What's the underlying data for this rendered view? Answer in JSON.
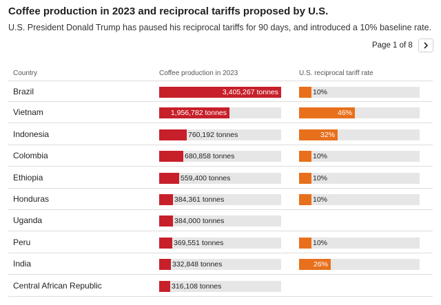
{
  "title": "Coffee production in 2023 and reciprocal tariffs proposed by U.S.",
  "subtitle": "U.S. President Donald Trump has paused his reciprocal tariffs for 90 days, and introduced a 10% baseline rate.",
  "pager": {
    "text": "Page 1 of 8",
    "next_icon": "chevron-right-icon"
  },
  "headers": {
    "country": "Country",
    "production": "Coffee production in 2023",
    "tariff": "U.S. reciprocal tariff rate"
  },
  "colors": {
    "production_bar": "#c7202a",
    "tariff_bar": "#e8701c",
    "track": "#e6e6e6"
  },
  "chart_data": {
    "type": "table",
    "title": "Coffee production in 2023 and reciprocal tariffs proposed by U.S.",
    "columns": [
      "Country",
      "Coffee production in 2023",
      "U.S. reciprocal tariff rate"
    ],
    "production_max": 3405267,
    "tariff_max": 100,
    "rows": [
      {
        "country": "Brazil",
        "production": 3405267,
        "production_label": "3,405,267 tonnes",
        "tariff": 10,
        "tariff_label": "10%"
      },
      {
        "country": "Vietnam",
        "production": 1956782,
        "production_label": "1,956,782 tonnes",
        "tariff": 46,
        "tariff_label": "46%"
      },
      {
        "country": "Indonesia",
        "production": 760192,
        "production_label": "760,192 tonnes",
        "tariff": 32,
        "tariff_label": "32%"
      },
      {
        "country": "Colombia",
        "production": 680858,
        "production_label": "680,858 tonnes",
        "tariff": 10,
        "tariff_label": "10%"
      },
      {
        "country": "Ethiopia",
        "production": 559400,
        "production_label": "559,400 tonnes",
        "tariff": 10,
        "tariff_label": "10%"
      },
      {
        "country": "Honduras",
        "production": 384361,
        "production_label": "384,361 tonnes",
        "tariff": 10,
        "tariff_label": "10%"
      },
      {
        "country": "Uganda",
        "production": 384000,
        "production_label": "384,000 tonnes",
        "tariff": null,
        "tariff_label": null
      },
      {
        "country": "Peru",
        "production": 369551,
        "production_label": "369,551 tonnes",
        "tariff": 10,
        "tariff_label": "10%"
      },
      {
        "country": "India",
        "production": 332848,
        "production_label": "332,848 tonnes",
        "tariff": 26,
        "tariff_label": "26%"
      },
      {
        "country": "Central African Republic",
        "production": 316108,
        "production_label": "316,108 tonnes",
        "tariff": null,
        "tariff_label": null
      }
    ]
  }
}
